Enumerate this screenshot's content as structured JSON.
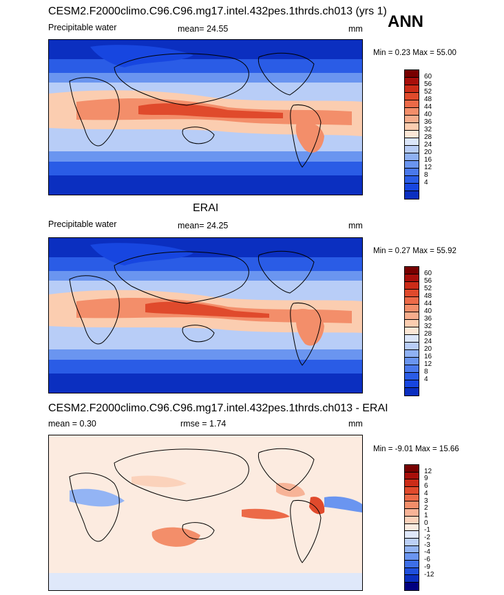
{
  "season": "ANN",
  "colors": {
    "precip_scale": [
      "#0a0a8c",
      "#0b2fc0",
      "#1746e0",
      "#2a5ce6",
      "#4a79ec",
      "#6a95f0",
      "#8fb1f3",
      "#b8cdf7",
      "#dbe6fa",
      "#fce7d6",
      "#fbcdb0",
      "#f7ad8c",
      "#f38e6a",
      "#ec6a48",
      "#e04a2c",
      "#cc2c18",
      "#a80f0b",
      "#780000"
    ],
    "diff_scale": [
      "#000080",
      "#0b2fc0",
      "#1f4fdd",
      "#3d6fe8",
      "#6a95f0",
      "#93b4f4",
      "#bcd0f7",
      "#dfe8fa",
      "#fcebe0",
      "#fbd2bb",
      "#f7b397",
      "#f38e6a",
      "#ec6a48",
      "#e04a2c",
      "#cc2c18",
      "#a80f0b",
      "#780000"
    ]
  },
  "chart_data": [
    {
      "type": "heatmap",
      "title": "CESM2.F2000climo.C96.C96.mg17.intel.432pes.1thrds.ch013 (yrs 1)",
      "left_label": "Precipitable water",
      "mean_label": "mean=",
      "mean": "24.55",
      "units": "mm",
      "min_label": "Min =",
      "min": "0.23",
      "max_label": "Max =",
      "max": "55.00",
      "colorbar_levels": [
        "60",
        "56",
        "52",
        "48",
        "44",
        "40",
        "36",
        "32",
        "28",
        "24",
        "20",
        "16",
        "12",
        "8",
        "4"
      ]
    },
    {
      "type": "heatmap",
      "title": "ERAI",
      "left_label": "Precipitable water",
      "mean_label": "mean=",
      "mean": "24.25",
      "units": "mm",
      "min_label": "Min =",
      "min": "0.27",
      "max_label": "Max =",
      "max": "55.92",
      "colorbar_levels": [
        "60",
        "56",
        "52",
        "48",
        "44",
        "40",
        "36",
        "32",
        "28",
        "24",
        "20",
        "16",
        "12",
        "8",
        "4"
      ]
    },
    {
      "type": "heatmap",
      "title": "CESM2.F2000climo.C96.C96.mg17.intel.432pes.1thrds.ch013 - ERAI",
      "mean_label": "mean =",
      "mean": "0.30",
      "rmse_label": "rmse =",
      "rmse": "1.74",
      "units": "mm",
      "min_label": "Min =",
      "min": "-9.01",
      "max_label": "Max =",
      "max": "15.66",
      "colorbar_levels": [
        "12",
        "9",
        "6",
        "4",
        "3",
        "2",
        "1",
        "0",
        "-1",
        "-2",
        "-3",
        "-4",
        "-6",
        "-9",
        "-12"
      ]
    }
  ]
}
